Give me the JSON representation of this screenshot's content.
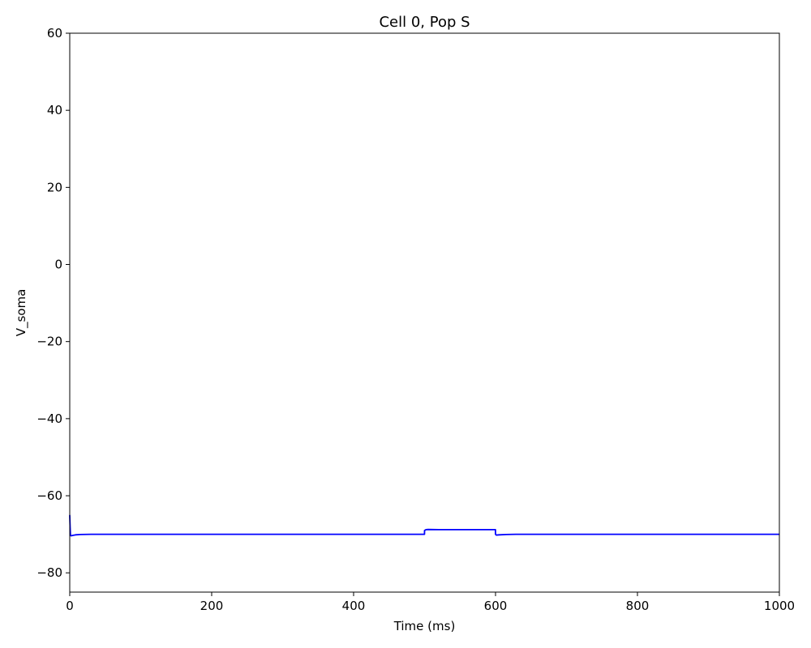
{
  "chart_data": {
    "type": "line",
    "title": "Cell 0, Pop S",
    "xlabel": "Time (ms)",
    "ylabel": "V_soma",
    "xlim": [
      0,
      1000
    ],
    "ylim": [
      -85,
      60
    ],
    "xticks": [
      0,
      200,
      400,
      600,
      800,
      1000
    ],
    "yticks": [
      -80,
      -60,
      -40,
      -20,
      0,
      20,
      40,
      60
    ],
    "xtick_labels": [
      "0",
      "200",
      "400",
      "600",
      "800",
      "1000"
    ],
    "ytick_labels": [
      "−80",
      "−60",
      "−40",
      "−20",
      "0",
      "20",
      "40",
      "60"
    ],
    "grid": false,
    "series": [
      {
        "color": "#0000ff",
        "x": [
          0,
          0.5,
          1,
          2,
          4,
          8,
          15,
          30,
          100,
          200,
          300,
          400,
          499.9,
          500,
          502,
          505,
          520,
          550,
          580,
          599.9,
          600,
          601,
          605,
          615,
          630,
          700,
          800,
          900,
          1000
        ],
        "y": [
          -65.0,
          -68.0,
          -70.3,
          -70.4,
          -70.3,
          -70.15,
          -70.05,
          -70.0,
          -70.0,
          -70.0,
          -70.0,
          -70.0,
          -70.0,
          -69.0,
          -68.8,
          -68.75,
          -68.8,
          -68.8,
          -68.8,
          -68.8,
          -70.0,
          -70.2,
          -70.15,
          -70.05,
          -70.0,
          -70.0,
          -70.0,
          -70.0,
          -70.0
        ]
      }
    ]
  }
}
